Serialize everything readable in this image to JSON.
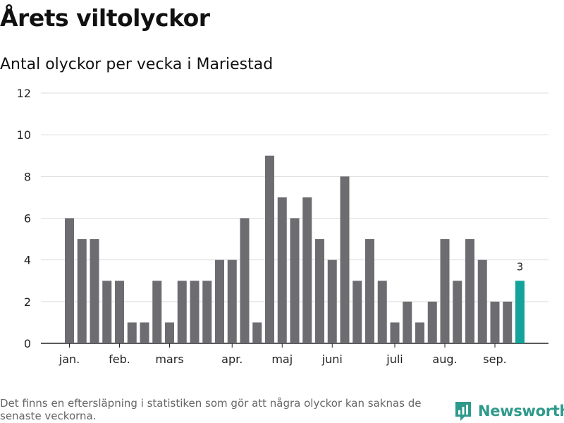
{
  "header": {
    "title": "Årets viltolyckor",
    "subtitle": "Antal olyckor per vecka i Mariestad"
  },
  "chart_data": {
    "type": "bar",
    "y_ticks": [
      0,
      2,
      4,
      6,
      8,
      10,
      12
    ],
    "ylim": [
      0,
      12
    ],
    "month_labels": [
      {
        "label": "jan.",
        "week": 1
      },
      {
        "label": "feb.",
        "week": 5
      },
      {
        "label": "mars",
        "week": 9
      },
      {
        "label": "apr.",
        "week": 14
      },
      {
        "label": "maj",
        "week": 18
      },
      {
        "label": "juni",
        "week": 22
      },
      {
        "label": "juli",
        "week": 27
      },
      {
        "label": "aug.",
        "week": 31
      },
      {
        "label": "sep.",
        "week": 35
      }
    ],
    "weeks": [
      1,
      2,
      3,
      4,
      5,
      6,
      7,
      8,
      9,
      10,
      11,
      12,
      13,
      14,
      15,
      16,
      17,
      18,
      19,
      20,
      21,
      22,
      23,
      24,
      25,
      26,
      27,
      28,
      29,
      30,
      31,
      32,
      33,
      34,
      35,
      36,
      37
    ],
    "values": [
      6,
      5,
      5,
      3,
      3,
      1,
      1,
      3,
      1,
      3,
      3,
      3,
      4,
      4,
      6,
      1,
      9,
      7,
      6,
      7,
      5,
      4,
      8,
      3,
      5,
      3,
      1,
      2,
      1,
      2,
      5,
      3,
      5,
      4,
      2,
      2,
      3
    ],
    "highlight_index": 36,
    "highlight_label": "3",
    "grid": true,
    "colors": {
      "bar": "#6d6c70",
      "highlight": "#13a39a",
      "grid": "#dddddd",
      "axis": "#222222"
    }
  },
  "footer": {
    "note": "Det finns en eftersläpning i statistiken som gör att några olyckor kan saknas de senaste veckorna.",
    "brand": "Newsworthy",
    "brand_color": "#2e9a8c"
  }
}
